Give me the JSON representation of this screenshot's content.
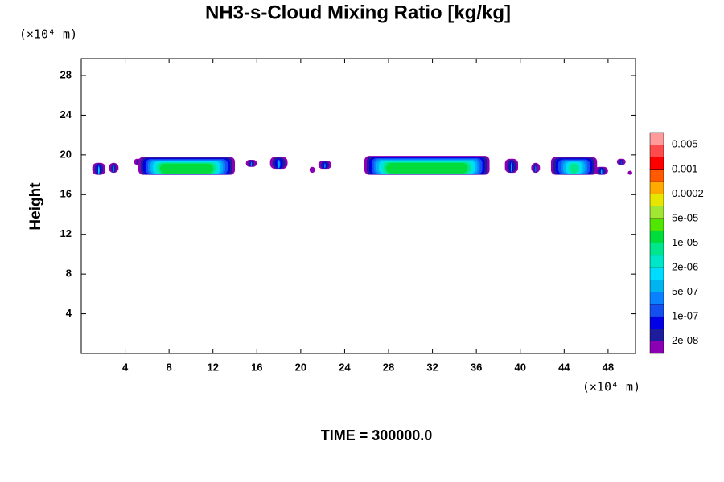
{
  "chart_data": {
    "type": "contour",
    "title": "NH3-s-Cloud Mixing Ratio [kg/kg]",
    "y_label": "Height",
    "y_unit": "(×10⁴ m)",
    "x_unit": "(×10⁴ m)",
    "footer": "TIME = 300000.0",
    "xlim": [
      0,
      50.5
    ],
    "ylim": [
      0,
      29.7
    ],
    "xticks": [
      4,
      8,
      12,
      16,
      20,
      24,
      28,
      32,
      36,
      40,
      44,
      48
    ],
    "yticks": [
      4,
      8,
      12,
      16,
      20,
      24,
      28
    ],
    "colorbar": {
      "colors": [
        "#8c00b4",
        "#1c1c9c",
        "#0000e6",
        "#1450f0",
        "#0a82ff",
        "#00b4f0",
        "#00dcff",
        "#00e6c8",
        "#00e68c",
        "#00dc3c",
        "#50e600",
        "#a0e632",
        "#e6e600",
        "#ffaa00",
        "#ff5a00",
        "#ff0000",
        "#ff4b4b",
        "#ff9b9b"
      ],
      "labels": [
        "2e-08",
        null,
        "1e-07",
        null,
        "5e-07",
        null,
        "2e-06",
        null,
        "1e-05",
        null,
        "5e-05",
        null,
        "0.0002",
        null,
        "0.001",
        null,
        "0.005"
      ]
    },
    "patches": [
      {
        "x": [
          1.0,
          2.2
        ],
        "y": [
          18.0,
          19.2
        ],
        "band": 6
      },
      {
        "x": [
          2.5,
          3.4
        ],
        "y": [
          18.2,
          19.2
        ],
        "band": 4
      },
      {
        "x": [
          4.8,
          5.6
        ],
        "y": [
          19.0,
          19.6
        ],
        "band": 3
      },
      {
        "x": [
          5.2,
          14.0
        ],
        "y": [
          18.0,
          19.8
        ],
        "band": 9
      },
      {
        "x": [
          15.0,
          16.0
        ],
        "y": [
          18.8,
          19.5
        ],
        "band": 4
      },
      {
        "x": [
          17.2,
          18.8
        ],
        "y": [
          18.6,
          19.8
        ],
        "band": 5
      },
      {
        "x": [
          20.8,
          21.3
        ],
        "y": [
          18.2,
          18.8
        ],
        "band": 3
      },
      {
        "x": [
          21.6,
          22.8
        ],
        "y": [
          18.6,
          19.4
        ],
        "band": 4
      },
      {
        "x": [
          25.8,
          37.2
        ],
        "y": [
          18.0,
          19.9
        ],
        "band": 9
      },
      {
        "x": [
          38.6,
          39.8
        ],
        "y": [
          18.2,
          19.6
        ],
        "band": 5
      },
      {
        "x": [
          41.0,
          41.8
        ],
        "y": [
          18.2,
          19.2
        ],
        "band": 4
      },
      {
        "x": [
          42.8,
          47.0
        ],
        "y": [
          18.0,
          19.8
        ],
        "band": 8
      },
      {
        "x": [
          46.8,
          48.0
        ],
        "y": [
          18.0,
          18.8
        ],
        "band": 5
      },
      {
        "x": [
          48.8,
          49.6
        ],
        "y": [
          19.0,
          19.6
        ],
        "band": 3
      },
      {
        "x": [
          49.8,
          50.2
        ],
        "y": [
          18.0,
          18.4
        ],
        "band": 2
      }
    ]
  }
}
